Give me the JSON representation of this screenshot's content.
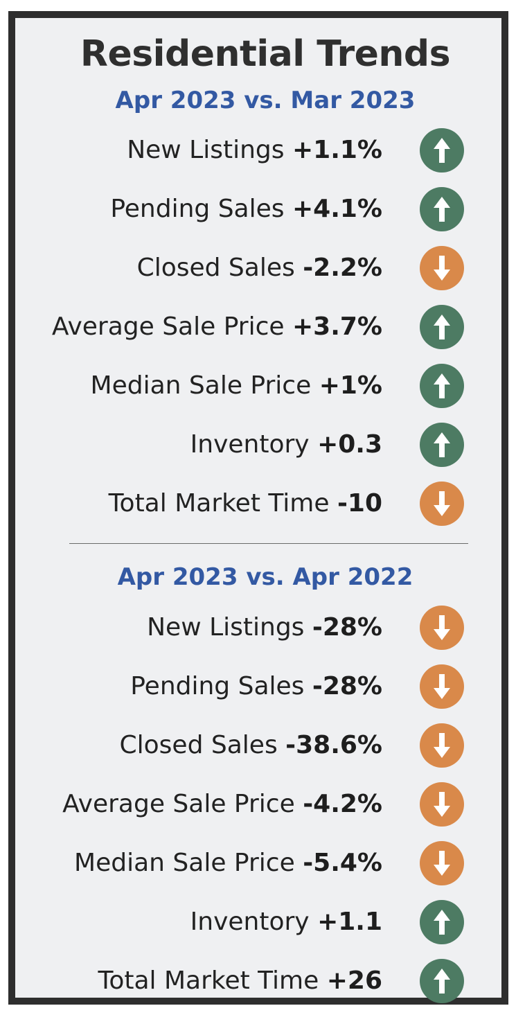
{
  "title": "Residential Trends",
  "colors": {
    "up": "#4d7b63",
    "down": "#d9894a",
    "subtitle": "#3359a3"
  },
  "sections": [
    {
      "subtitle": "Apr 2023 vs. Mar 2023",
      "rows": [
        {
          "label": "New Listings",
          "value": "+1.1%",
          "direction": "up",
          "icon": "arrow-up-icon"
        },
        {
          "label": "Pending Sales",
          "value": "+4.1%",
          "direction": "up",
          "icon": "arrow-up-icon"
        },
        {
          "label": "Closed Sales",
          "value": "-2.2%",
          "direction": "down",
          "icon": "arrow-down-icon"
        },
        {
          "label": "Average Sale Price",
          "value": "+3.7%",
          "direction": "up",
          "icon": "arrow-up-icon"
        },
        {
          "label": "Median Sale Price",
          "value": "+1%",
          "direction": "up",
          "icon": "arrow-up-icon"
        },
        {
          "label": "Inventory",
          "value": "+0.3",
          "direction": "up",
          "icon": "arrow-up-icon"
        },
        {
          "label": "Total Market Time",
          "value": "-10",
          "direction": "down",
          "icon": "arrow-down-icon"
        }
      ]
    },
    {
      "subtitle": "Apr 2023 vs. Apr 2022",
      "rows": [
        {
          "label": "New Listings",
          "value": "-28%",
          "direction": "down",
          "icon": "arrow-down-icon"
        },
        {
          "label": "Pending Sales",
          "value": "-28%",
          "direction": "down",
          "icon": "arrow-down-icon"
        },
        {
          "label": "Closed Sales",
          "value": "-38.6%",
          "direction": "down",
          "icon": "arrow-down-icon"
        },
        {
          "label": "Average Sale Price",
          "value": "-4.2%",
          "direction": "down",
          "icon": "arrow-down-icon"
        },
        {
          "label": "Median Sale Price",
          "value": "-5.4%",
          "direction": "down",
          "icon": "arrow-down-icon"
        },
        {
          "label": "Inventory",
          "value": "+1.1",
          "direction": "up",
          "icon": "arrow-up-icon"
        },
        {
          "label": "Total Market Time",
          "value": "+26",
          "direction": "up",
          "icon": "arrow-up-icon"
        }
      ]
    }
  ]
}
